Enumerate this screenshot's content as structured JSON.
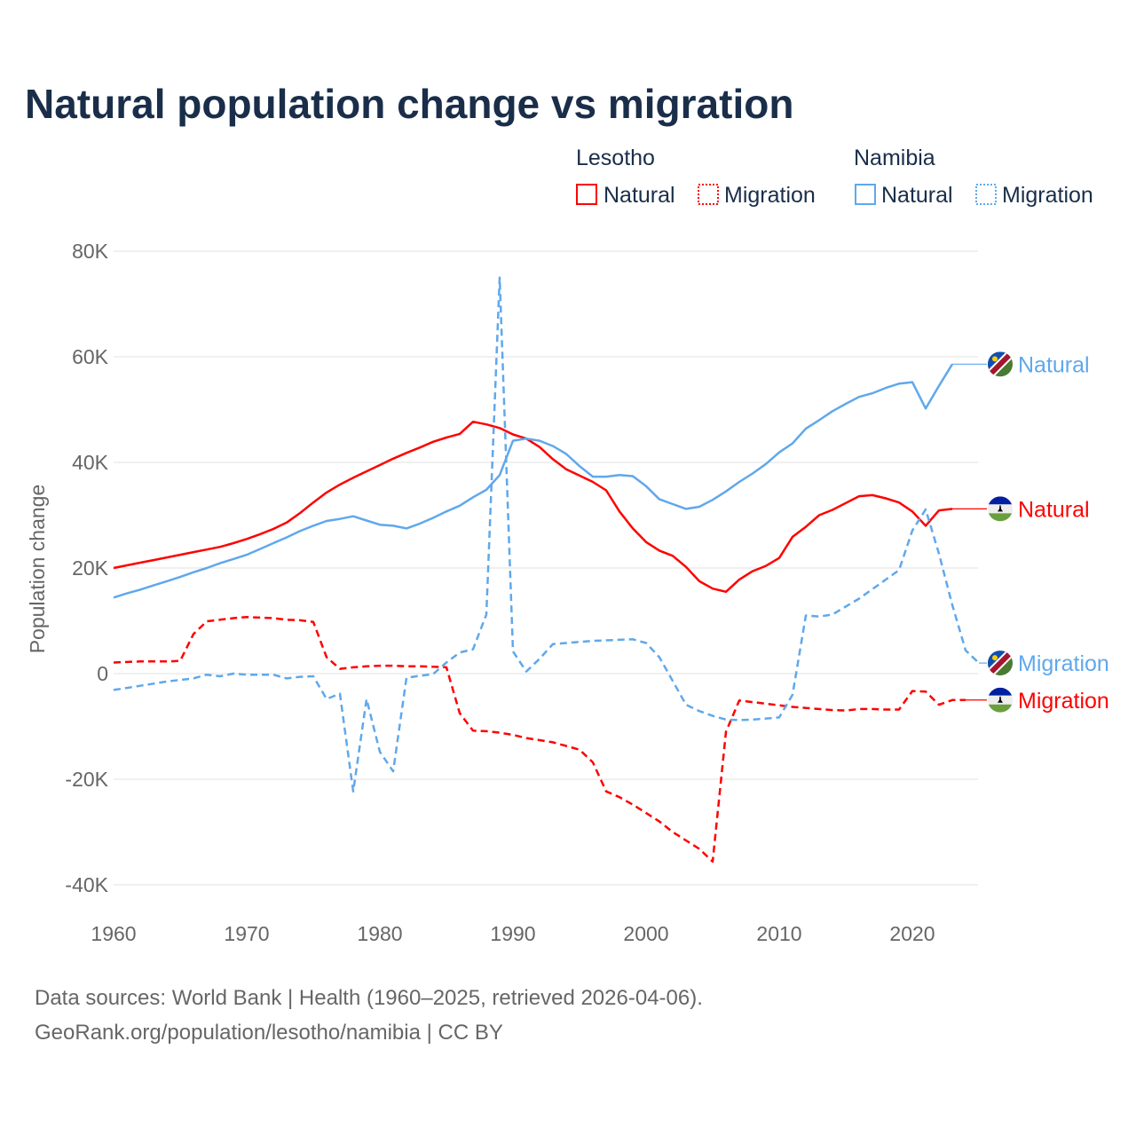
{
  "chart_data": {
    "type": "line",
    "title": "Natural population change vs migration",
    "xlabel": "",
    "ylabel": "Population change",
    "xlim": [
      1960,
      2025
    ],
    "ylim": [
      -40000,
      80000
    ],
    "grid": true,
    "y_ticks": [
      {
        "value": 80,
        "label": "80K"
      },
      {
        "value": 60,
        "label": "60K"
      },
      {
        "value": 40,
        "label": "40K"
      },
      {
        "value": 20,
        "label": "20K"
      },
      {
        "value": 0,
        "label": "0"
      },
      {
        "value": -20,
        "label": "-20K"
      },
      {
        "value": -40,
        "label": "-40K"
      }
    ],
    "x_ticks": [
      {
        "value": 1960,
        "label": "1960"
      },
      {
        "value": 1970,
        "label": "1970"
      },
      {
        "value": 1980,
        "label": "1980"
      },
      {
        "value": 1990,
        "label": "1990"
      },
      {
        "value": 2000,
        "label": "2000"
      },
      {
        "value": 2010,
        "label": "2010"
      },
      {
        "value": 2020,
        "label": "2020"
      }
    ],
    "value_unit": "thousands",
    "legend": {
      "placement": "top-right",
      "groups": [
        {
          "name": "Lesotho",
          "items": [
            "Natural",
            "Migration"
          ]
        },
        {
          "name": "Namibia",
          "items": [
            "Natural",
            "Migration"
          ]
        }
      ]
    },
    "series": [
      {
        "name": "Lesotho Natural",
        "country": "Lesotho",
        "label": "Natural",
        "color": "#ff0000",
        "dashed": false,
        "flag": "lesotho",
        "start_year": 1960,
        "values": [
          20.0,
          20.5,
          21.0,
          21.5,
          22.0,
          22.5,
          23.0,
          23.5,
          24.0,
          24.7,
          25.5,
          26.4,
          27.4,
          28.6,
          30.4,
          32.4,
          34.3,
          35.8,
          37.1,
          38.3,
          39.5,
          40.7,
          41.8,
          42.8,
          43.9,
          44.7,
          45.4,
          47.7,
          47.2,
          46.5,
          45.3,
          44.5,
          42.9,
          40.6,
          38.7,
          37.5,
          36.3,
          34.7,
          30.7,
          27.5,
          24.9,
          23.3,
          22.3,
          20.2,
          17.5,
          16.1,
          15.5,
          17.8,
          19.4,
          20.4,
          21.9,
          25.9,
          27.8,
          30.0,
          31.0,
          32.3,
          33.6,
          33.8,
          33.2,
          32.4,
          30.7,
          28.0,
          30.9,
          31.2
        ]
      },
      {
        "name": "Lesotho Migration",
        "country": "Lesotho",
        "label": "Migration",
        "color": "#ff0000",
        "dashed": true,
        "flag": "lesotho",
        "start_year": 1960,
        "values": [
          2.1,
          2.2,
          2.3,
          2.3,
          2.3,
          2.4,
          7.5,
          9.9,
          10.2,
          10.5,
          10.7,
          10.6,
          10.5,
          10.2,
          10.1,
          9.8,
          3.1,
          0.9,
          1.2,
          1.4,
          1.5,
          1.5,
          1.4,
          1.4,
          1.3,
          1.2,
          -7.5,
          -10.8,
          -10.9,
          -11.2,
          -11.6,
          -12.2,
          -12.6,
          -13.0,
          -13.7,
          -14.4,
          -16.8,
          -22.3,
          -23.4,
          -24.8,
          -26.4,
          -28.0,
          -30.0,
          -31.6,
          -33.2,
          -35.6,
          -11.0,
          -5.1,
          -5.4,
          -5.7,
          -6.0,
          -6.3,
          -6.5,
          -6.7,
          -6.9,
          -7.0,
          -6.7,
          -6.7,
          -6.8,
          -6.8,
          -3.3,
          -3.4,
          -5.9,
          -5.0,
          -5.0
        ]
      },
      {
        "name": "Namibia Natural",
        "country": "Namibia",
        "label": "Natural",
        "color": "#5fa8ec",
        "dashed": false,
        "flag": "namibia",
        "start_year": 1960,
        "values": [
          14.4,
          15.2,
          15.9,
          16.7,
          17.5,
          18.3,
          19.2,
          20.0,
          20.9,
          21.7,
          22.5,
          23.6,
          24.7,
          25.8,
          27.0,
          28.0,
          28.9,
          29.3,
          29.8,
          29.0,
          28.2,
          28.0,
          27.5,
          28.4,
          29.5,
          30.7,
          31.8,
          33.4,
          34.8,
          37.6,
          44.1,
          44.5,
          44.1,
          43.1,
          41.6,
          39.3,
          37.3,
          37.3,
          37.6,
          37.4,
          35.5,
          33.0,
          32.1,
          31.2,
          31.6,
          32.9,
          34.5,
          36.3,
          37.9,
          39.7,
          41.9,
          43.6,
          46.4,
          48.0,
          49.7,
          51.1,
          52.4,
          53.1,
          54.1,
          54.9,
          55.2,
          50.2,
          54.5,
          58.6
        ]
      },
      {
        "name": "Namibia Migration",
        "country": "Namibia",
        "label": "Migration",
        "color": "#5fa8ec",
        "dashed": true,
        "flag": "namibia",
        "start_year": 1960,
        "values": [
          -3.1,
          -2.7,
          -2.3,
          -1.9,
          -1.5,
          -1.2,
          -0.9,
          -0.2,
          -0.5,
          0.0,
          -0.2,
          -0.2,
          -0.2,
          -0.9,
          -0.6,
          -0.5,
          -4.8,
          -3.8,
          -22.3,
          -4.8,
          -14.8,
          -18.5,
          -0.8,
          -0.4,
          -0.1,
          2.1,
          4.0,
          4.6,
          11.2,
          75.0,
          4.2,
          0.4,
          2.8,
          5.6,
          5.8,
          6.0,
          6.2,
          6.3,
          6.4,
          6.5,
          5.8,
          3.1,
          -1.4,
          -5.9,
          -7.1,
          -8.0,
          -8.7,
          -8.8,
          -8.7,
          -8.5,
          -8.3,
          -4.0,
          11.0,
          10.8,
          11.2,
          12.7,
          14.2,
          16.0,
          17.8,
          19.6,
          27.1,
          31.1,
          22.7,
          13.0,
          4.4,
          2.0
        ]
      }
    ]
  },
  "footer": {
    "line1": "Data sources: World Bank | Health (1960–2025, retrieved 2026-04-06).",
    "line2": "GeoRank.org/population/lesotho/namibia | CC BY"
  }
}
